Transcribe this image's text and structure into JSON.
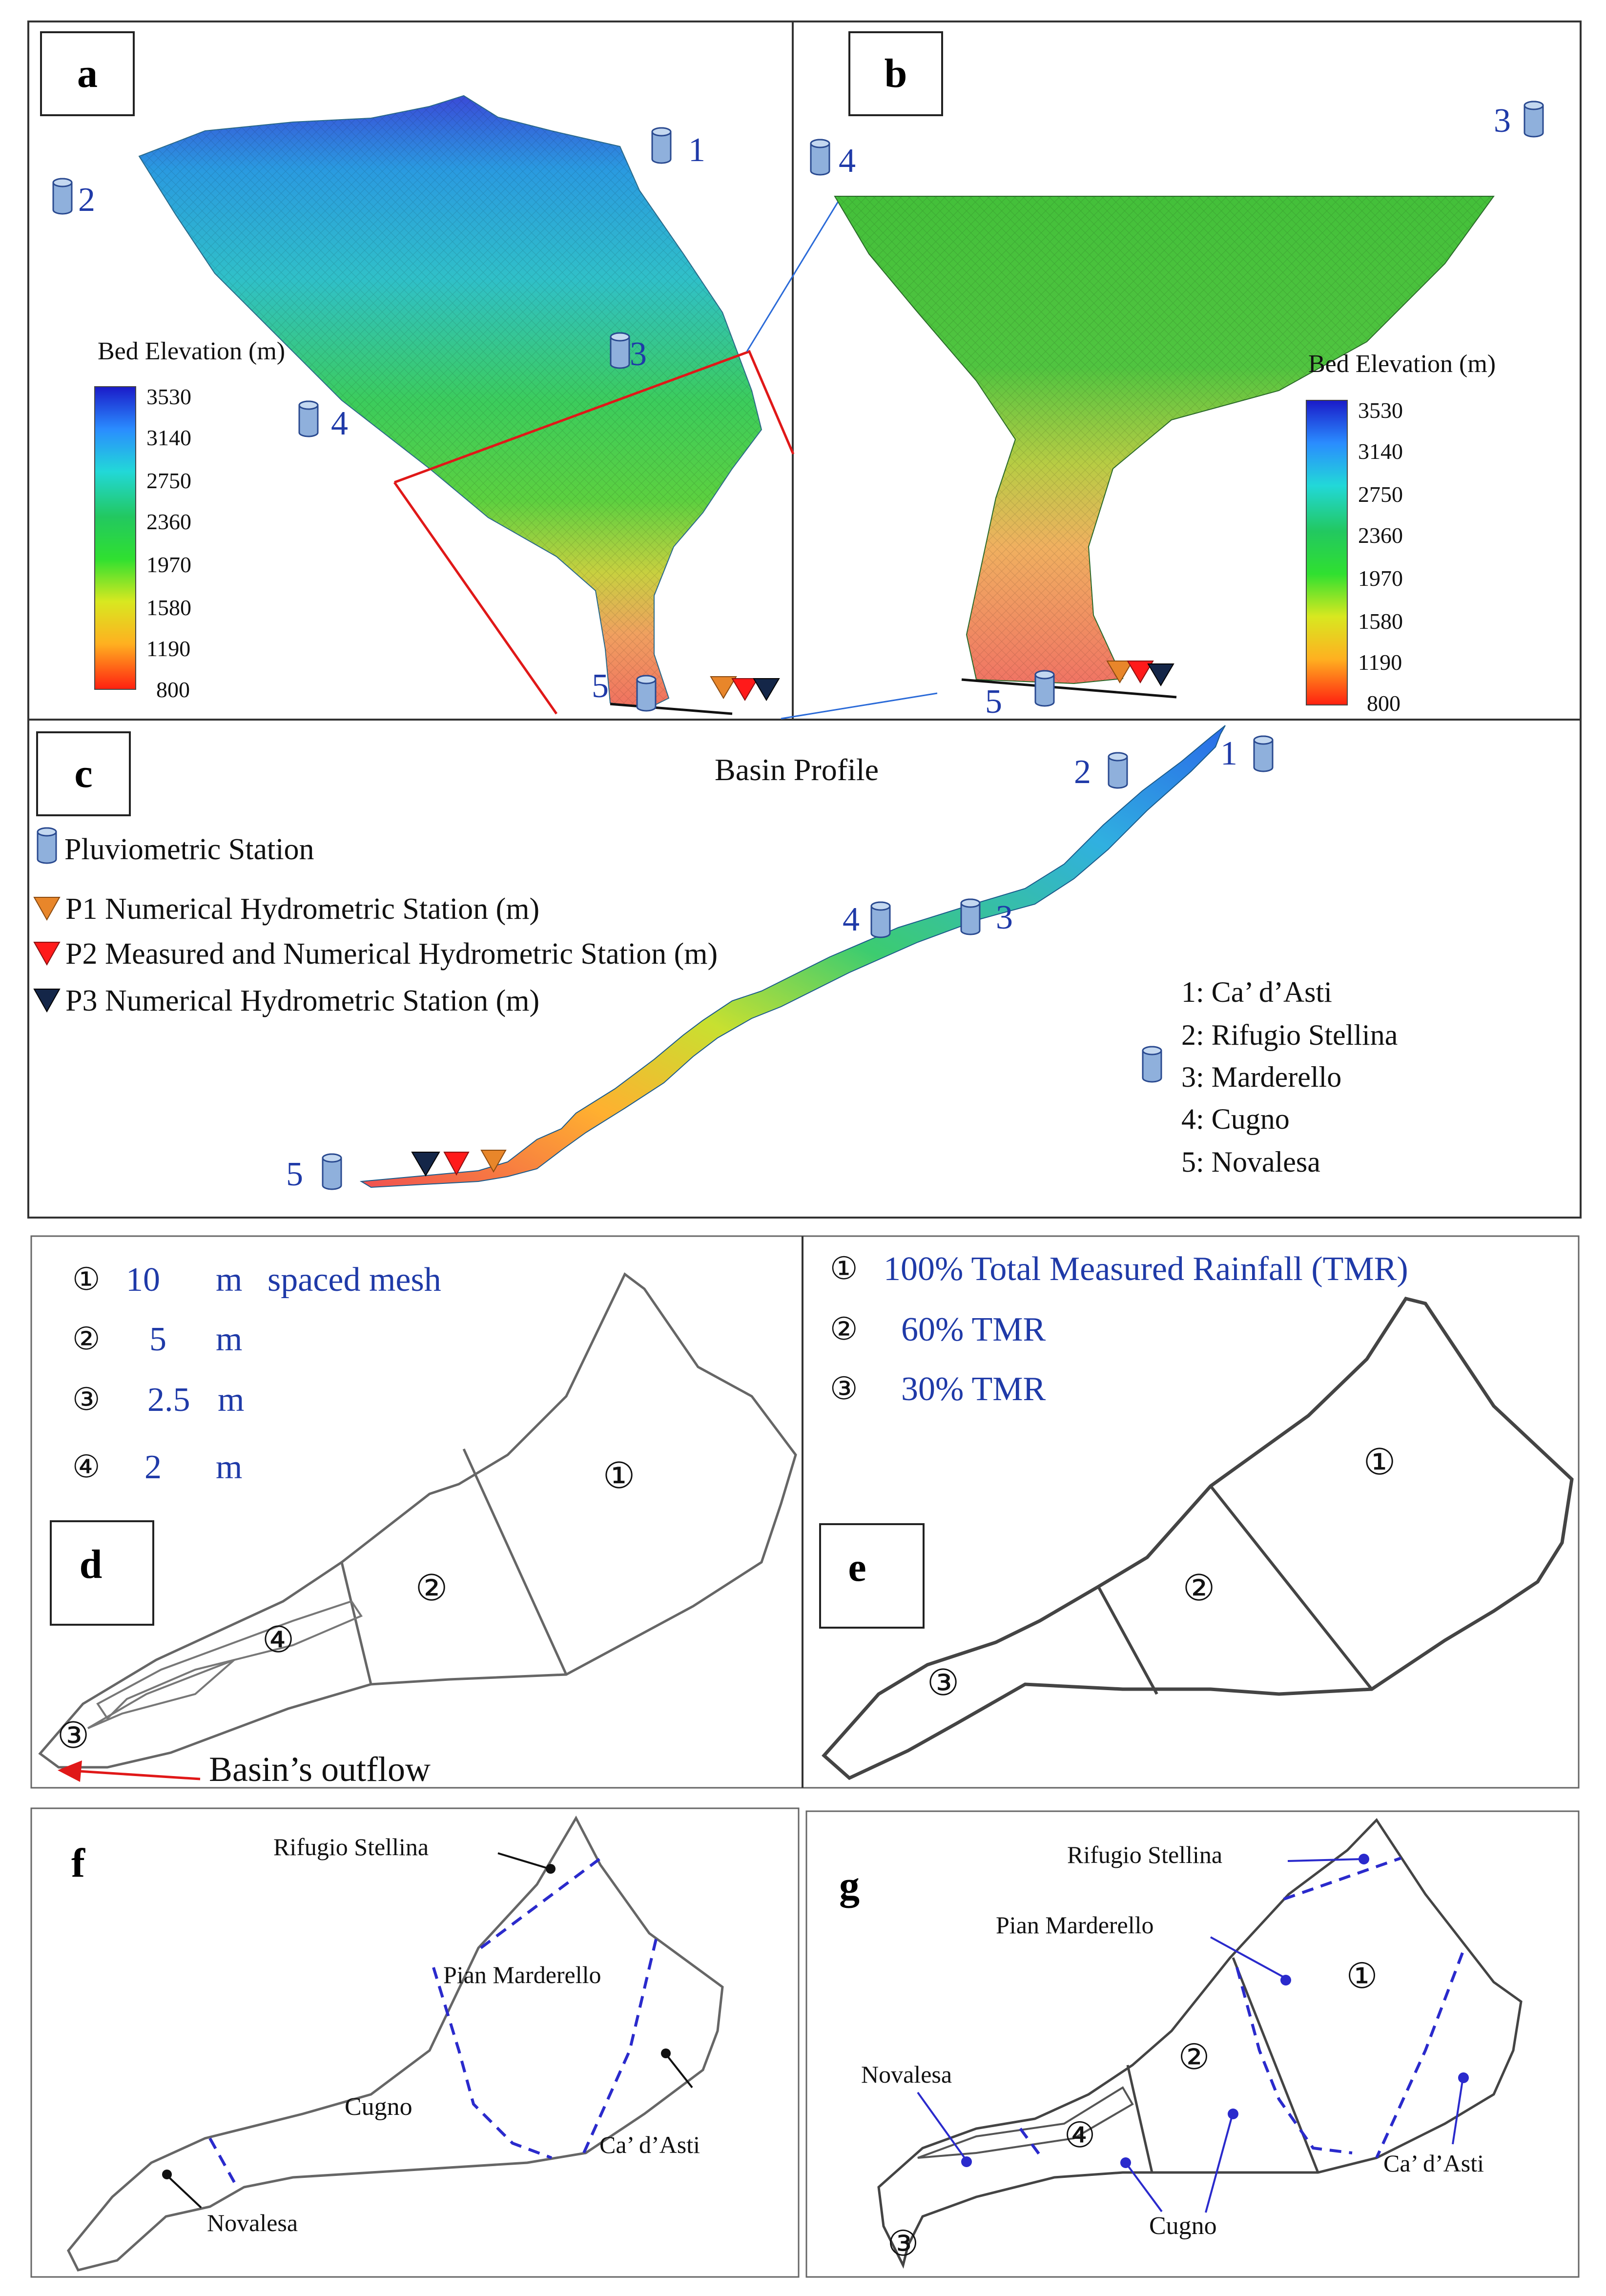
{
  "panels": {
    "a": "a",
    "b": "b",
    "c": "c",
    "d": "d",
    "e": "e",
    "f": "f",
    "g": "g"
  },
  "colorbar": {
    "title": "Bed Elevation (m)",
    "ticks": [
      "3530",
      "3140",
      "2750",
      "2360",
      "1970",
      "1580",
      "1190",
      "800"
    ],
    "colors": [
      "#1a1ac8",
      "#2a8cff",
      "#22d8d8",
      "#22c860",
      "#30e030",
      "#d8e820",
      "#ffb020",
      "#ff2010"
    ]
  },
  "station_numbers": {
    "s1": "1",
    "s2": "2",
    "s3": "3",
    "s4": "4",
    "s5": "5"
  },
  "panel_c": {
    "title": "Basin Profile",
    "legend": {
      "pluvio": "Pluviometric Station",
      "p1": "P1 Numerical Hydrometric Station (m)",
      "p2": "P2 Measured and Numerical Hydrometric Station (m)",
      "p3": "P3 Numerical Hydrometric Station (m)"
    },
    "stations_list": [
      "1: Ca’ d’Asti",
      "2: Rifugio Stellina",
      "3: Marderello",
      "4: Cugno",
      "5: Novalesa"
    ]
  },
  "panel_d": {
    "legend": [
      {
        "mark": "①",
        "value": "10",
        "unit": "m",
        "extra": "spaced mesh"
      },
      {
        "mark": "②",
        "value": "5",
        "unit": "m",
        "extra": ""
      },
      {
        "mark": "③",
        "value": "2.5",
        "unit": "m",
        "extra": ""
      },
      {
        "mark": "④",
        "value": "2",
        "unit": "m",
        "extra": ""
      }
    ],
    "zones": [
      "①",
      "②",
      "③",
      "④"
    ],
    "outflow": "Basin’s outflow"
  },
  "panel_e": {
    "legend": [
      {
        "mark": "①",
        "text": "100% Total Measured Rainfall (TMR)"
      },
      {
        "mark": "②",
        "text": "60% TMR"
      },
      {
        "mark": "③",
        "text": "30% TMR"
      }
    ],
    "zones": [
      "①",
      "②",
      "③"
    ]
  },
  "panel_f": {
    "labels": {
      "rifugio": "Rifugio Stellina",
      "pian": "Pian Marderello",
      "cugno": "Cugno",
      "caasti": "Ca’ d’Asti",
      "novalesa": "Novalesa"
    }
  },
  "panel_g": {
    "labels": {
      "rifugio": "Rifugio Stellina",
      "pian": "Pian Marderello",
      "novalesa": "Novalesa",
      "cugno": "Cugno",
      "caasti": "Ca’ d’Asti"
    },
    "zones": [
      "①",
      "②",
      "③",
      "④"
    ]
  }
}
